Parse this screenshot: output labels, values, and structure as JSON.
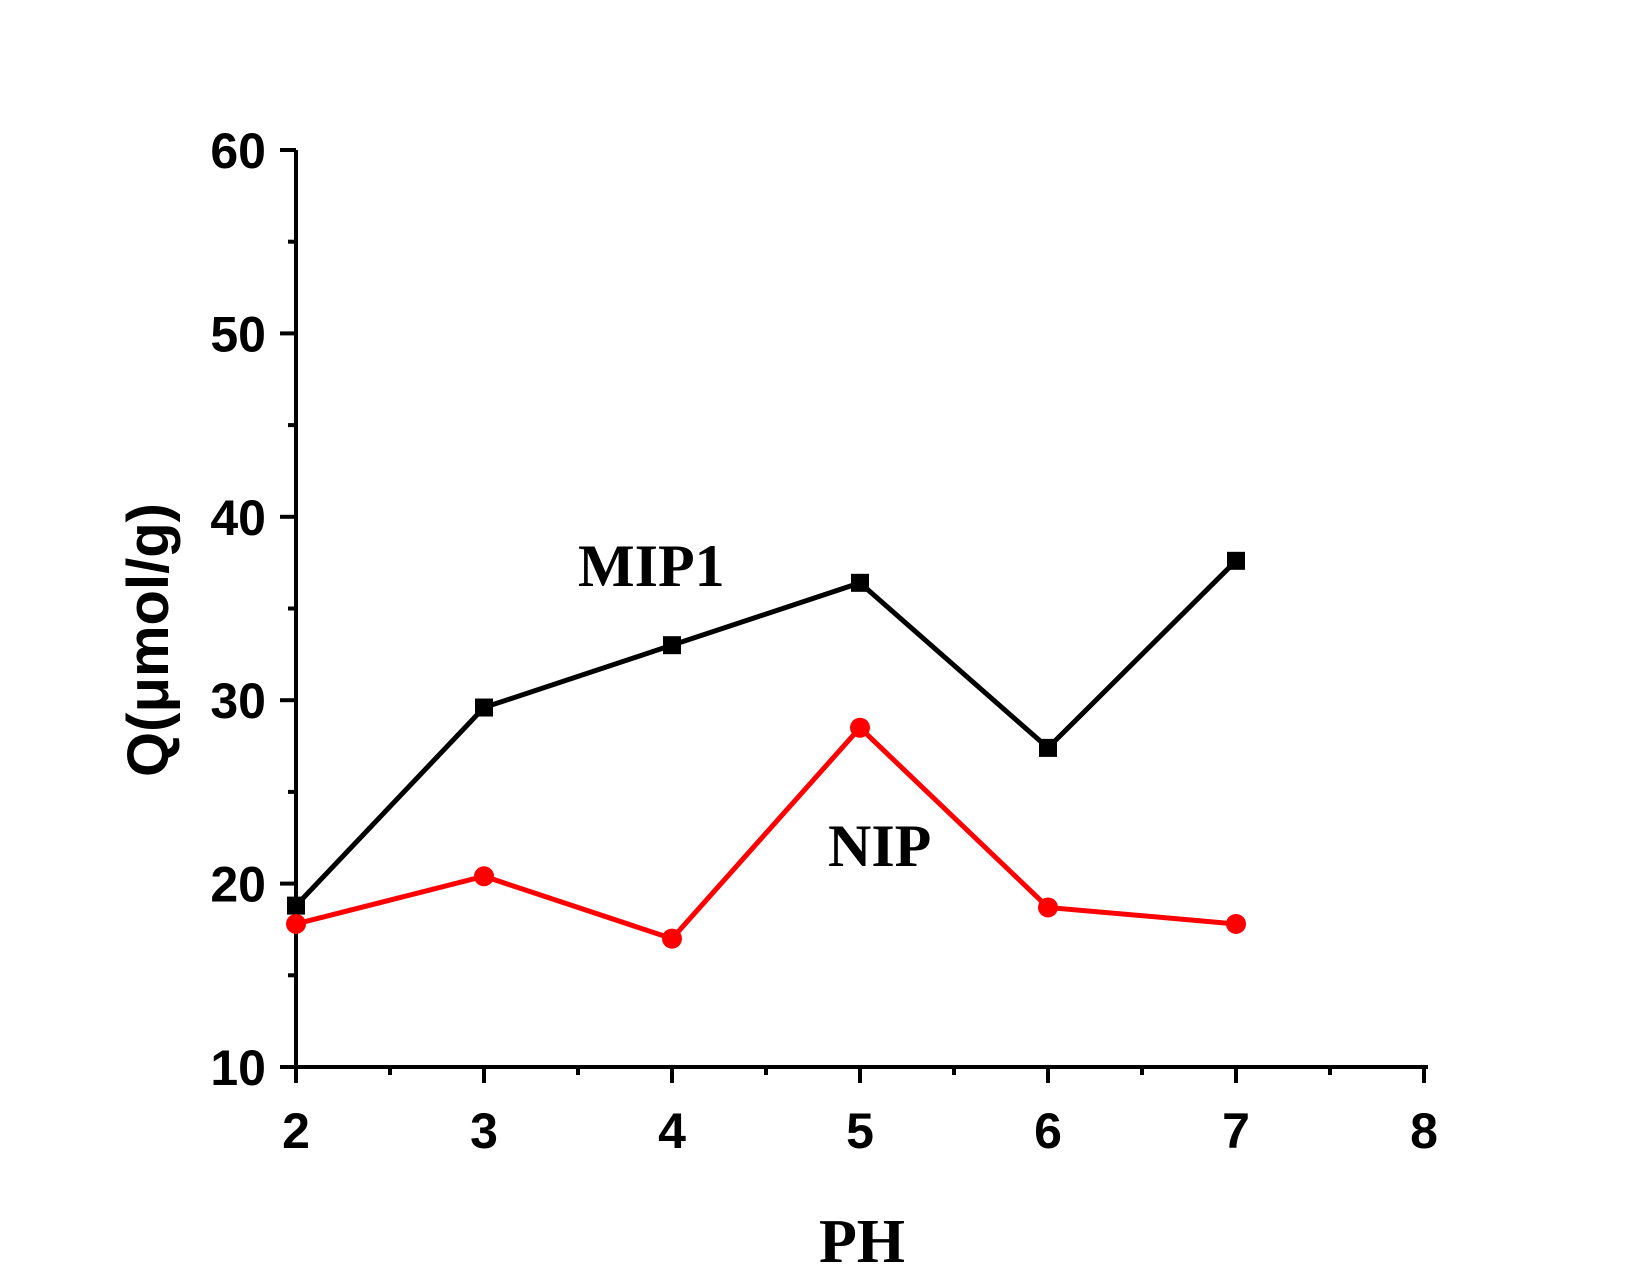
{
  "chart_data": {
    "type": "line",
    "xlabel": "PH",
    "ylabel": "Q(μmol/g)",
    "xlim": [
      2,
      8
    ],
    "ylim": [
      10,
      60
    ],
    "x_ticks": [
      2,
      3,
      4,
      5,
      6,
      7,
      8
    ],
    "y_ticks": [
      10,
      20,
      30,
      40,
      50,
      60
    ],
    "grid": false,
    "legend": "none",
    "series": [
      {
        "name": "MIP1",
        "color": "#000000",
        "marker": "square",
        "x": [
          2,
          3,
          4,
          5,
          6,
          7
        ],
        "y": [
          18.8,
          29.6,
          33.0,
          36.4,
          27.4,
          37.6
        ]
      },
      {
        "name": "NIP",
        "color": "#ff0000",
        "marker": "circle",
        "x": [
          2,
          3,
          4,
          5,
          6,
          7
        ],
        "y": [
          17.8,
          20.4,
          17.0,
          28.5,
          18.7,
          17.8
        ]
      }
    ]
  }
}
